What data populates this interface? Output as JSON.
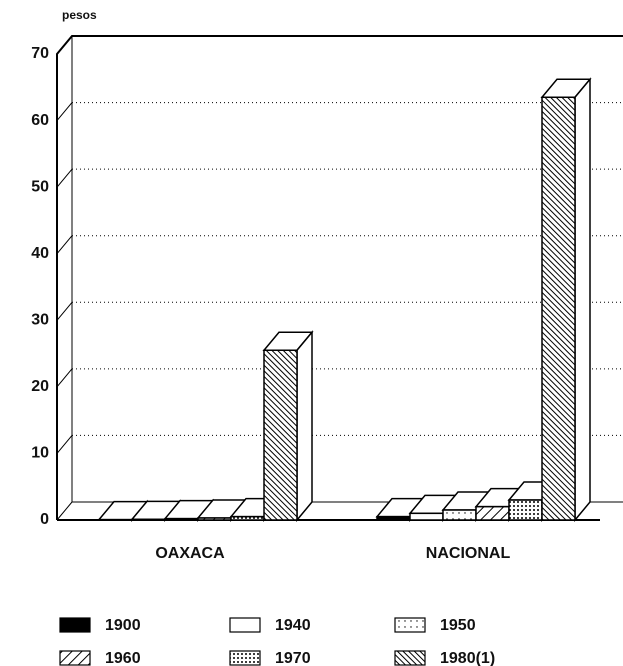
{
  "chart_data": {
    "type": "bar3d",
    "y_label": "pesos",
    "categories": [
      "OAXACA",
      "NACIONAL"
    ],
    "series": [
      {
        "name": "1900",
        "color": "#000000",
        "pattern": "solid",
        "values": [
          0.05,
          0.5
        ]
      },
      {
        "name": "1940",
        "color": "#ffffff",
        "pattern": "none",
        "values": [
          0.1,
          1
        ]
      },
      {
        "name": "1950",
        "color": "#ffffff",
        "pattern": "sparse-dots",
        "values": [
          0.2,
          1.5
        ]
      },
      {
        "name": "1960",
        "color": "#ffffff",
        "pattern": "hatch",
        "values": [
          0.3,
          2
        ]
      },
      {
        "name": "1970",
        "color": "#ffffff",
        "pattern": "dense-dots",
        "values": [
          0.5,
          3
        ]
      },
      {
        "name": "1980(1)",
        "color": "#ffffff",
        "pattern": "dense-hatch",
        "values": [
          25.5,
          63.5
        ]
      }
    ],
    "ylim": [
      0,
      70
    ],
    "yticks": [
      0,
      10,
      20,
      30,
      40,
      50,
      60,
      70
    ],
    "grid": true
  }
}
